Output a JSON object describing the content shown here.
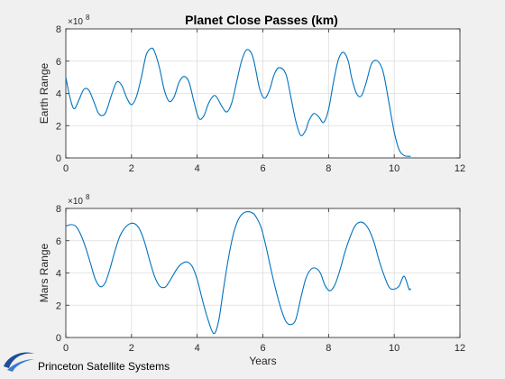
{
  "title": "Planet Close Passes (km)",
  "branding": {
    "text": "Princeton Satellite Systems",
    "icon": "swoosh-logo-icon",
    "color": "#1f4e9a"
  },
  "colors": {
    "line": "#0072bd",
    "axes_bg": "#ffffff",
    "grid": "#dcdcdc",
    "figure_bg": "#f0f0f0"
  },
  "chart_data": [
    {
      "type": "line",
      "ylabel": "Earth Range",
      "xlabel": "",
      "xlim": [
        0,
        12
      ],
      "ylim": [
        0,
        800000000
      ],
      "exponent_label": "×10",
      "exponent_power": "8",
      "xticks": [
        "0",
        "2",
        "4",
        "6",
        "8",
        "10",
        "12"
      ],
      "yticks": [
        "0",
        "2",
        "4",
        "6",
        "8"
      ],
      "grid": true,
      "x": [
        0.0,
        0.12,
        0.25,
        0.4,
        0.55,
        0.7,
        0.85,
        1.0,
        1.15,
        1.25,
        1.4,
        1.55,
        1.7,
        1.85,
        2.0,
        2.15,
        2.3,
        2.45,
        2.6,
        2.7,
        2.85,
        3.0,
        3.15,
        3.3,
        3.45,
        3.6,
        3.75,
        3.9,
        4.05,
        4.2,
        4.35,
        4.5,
        4.6,
        4.75,
        4.9,
        5.05,
        5.2,
        5.35,
        5.5,
        5.65,
        5.75,
        5.9,
        6.05,
        6.2,
        6.35,
        6.5,
        6.7,
        6.85,
        7.0,
        7.15,
        7.3,
        7.4,
        7.55,
        7.7,
        7.85,
        8.0,
        8.15,
        8.3,
        8.45,
        8.6,
        8.7,
        8.85,
        9.0,
        9.15,
        9.3,
        9.45,
        9.6,
        9.7,
        9.85,
        10.0,
        10.15,
        10.3,
        10.45,
        10.5
      ],
      "y": [
        500000000,
        380000000,
        305000000,
        360000000,
        425000000,
        420000000,
        350000000,
        275000000,
        265000000,
        300000000,
        395000000,
        470000000,
        450000000,
        375000000,
        330000000,
        380000000,
        500000000,
        640000000,
        680000000,
        660000000,
        560000000,
        420000000,
        350000000,
        380000000,
        470000000,
        505000000,
        470000000,
        350000000,
        245000000,
        260000000,
        340000000,
        385000000,
        375000000,
        320000000,
        285000000,
        340000000,
        470000000,
        600000000,
        670000000,
        650000000,
        580000000,
        430000000,
        370000000,
        420000000,
        520000000,
        560000000,
        520000000,
        380000000,
        230000000,
        140000000,
        170000000,
        230000000,
        275000000,
        255000000,
        220000000,
        300000000,
        470000000,
        610000000,
        655000000,
        600000000,
        500000000,
        400000000,
        385000000,
        470000000,
        580000000,
        605000000,
        570000000,
        500000000,
        330000000,
        160000000,
        50000000,
        15000000,
        10000000,
        10000000
      ]
    },
    {
      "type": "line",
      "ylabel": "Mars Range",
      "xlabel": "Years",
      "xlim": [
        0,
        12
      ],
      "ylim": [
        0,
        800000000
      ],
      "exponent_label": "×10",
      "exponent_power": "8",
      "xticks": [
        "0",
        "2",
        "4",
        "6",
        "8",
        "10",
        "12"
      ],
      "yticks": [
        "0",
        "2",
        "4",
        "6",
        "8"
      ],
      "grid": true,
      "x": [
        0.0,
        0.15,
        0.3,
        0.45,
        0.6,
        0.75,
        0.9,
        1.05,
        1.2,
        1.35,
        1.5,
        1.65,
        1.8,
        1.95,
        2.1,
        2.25,
        2.4,
        2.55,
        2.7,
        2.85,
        3.0,
        3.1,
        3.25,
        3.4,
        3.55,
        3.7,
        3.85,
        4.0,
        4.15,
        4.3,
        4.5,
        4.65,
        4.8,
        4.95,
        5.1,
        5.25,
        5.4,
        5.55,
        5.7,
        5.8,
        5.95,
        6.1,
        6.25,
        6.4,
        6.55,
        6.7,
        6.85,
        7.0,
        7.15,
        7.3,
        7.45,
        7.6,
        7.75,
        7.9,
        8.05,
        8.2,
        8.35,
        8.5,
        8.65,
        8.8,
        8.95,
        9.1,
        9.25,
        9.4,
        9.55,
        9.7,
        9.85,
        10.0,
        10.15,
        10.3,
        10.45,
        10.5
      ],
      "y": [
        690000000,
        700000000,
        690000000,
        640000000,
        560000000,
        460000000,
        360000000,
        315000000,
        340000000,
        430000000,
        540000000,
        630000000,
        680000000,
        705000000,
        705000000,
        670000000,
        590000000,
        480000000,
        380000000,
        320000000,
        310000000,
        330000000,
        380000000,
        430000000,
        460000000,
        468000000,
        440000000,
        360000000,
        240000000,
        130000000,
        25000000,
        100000000,
        300000000,
        490000000,
        640000000,
        730000000,
        770000000,
        780000000,
        770000000,
        745000000,
        680000000,
        560000000,
        420000000,
        290000000,
        180000000,
        100000000,
        80000000,
        110000000,
        240000000,
        360000000,
        420000000,
        430000000,
        400000000,
        320000000,
        290000000,
        330000000,
        420000000,
        530000000,
        620000000,
        690000000,
        715000000,
        705000000,
        660000000,
        580000000,
        470000000,
        380000000,
        310000000,
        300000000,
        320000000,
        380000000,
        300000000,
        305000000
      ]
    }
  ]
}
